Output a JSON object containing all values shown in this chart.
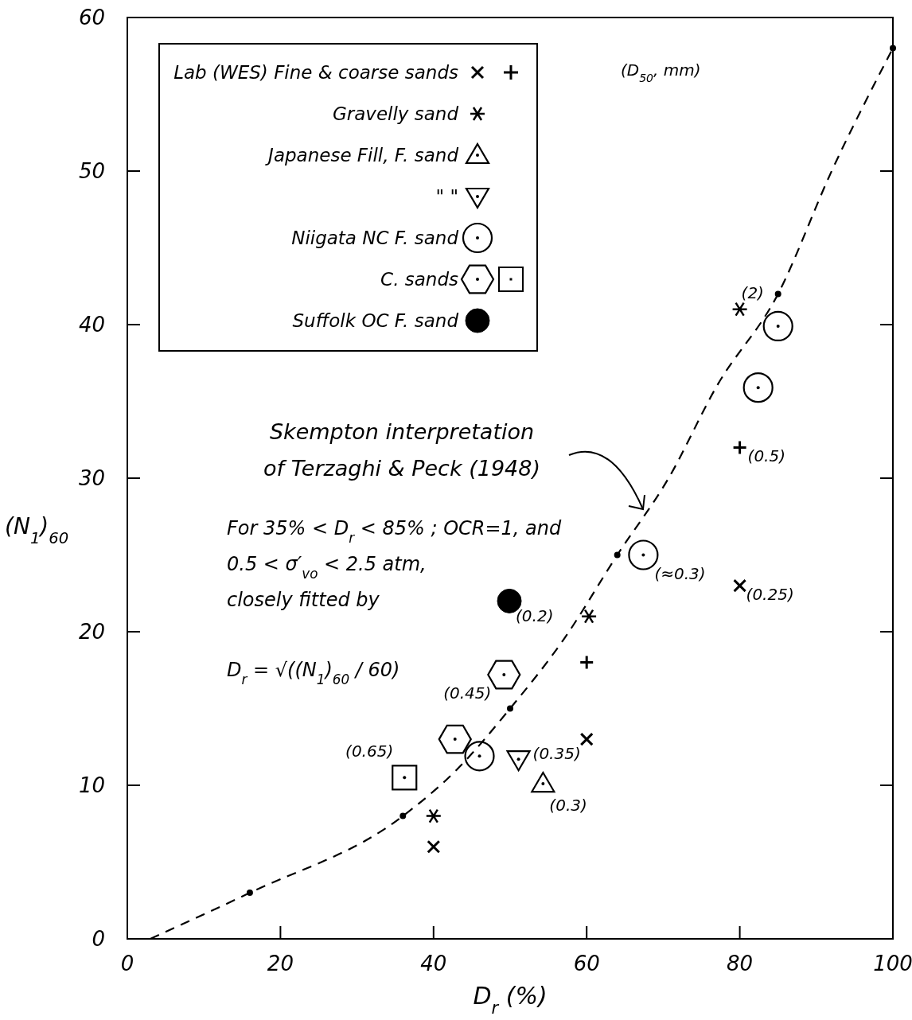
{
  "chart_data": {
    "type": "scatter",
    "xlabel": "D$_{r}$ (%)",
    "ylabel": "(N$_{1}$)$_{60}$",
    "xlim": [
      0,
      100
    ],
    "ylim": [
      0,
      60
    ],
    "xticks": [
      0,
      20,
      40,
      60,
      80,
      100
    ],
    "yticks": [
      0,
      10,
      20,
      30,
      40,
      50,
      60
    ],
    "grid": false,
    "legend": "top left",
    "series": [
      {
        "name": "Lab (WES) Fine & coarse sands",
        "marker": "x",
        "color": "#000000",
        "x": [
          80,
          60,
          40
        ],
        "values": [
          23,
          13,
          6
        ]
      },
      {
        "marker": "plus",
        "color": "#000000",
        "x": [
          80,
          60
        ],
        "values": [
          32,
          18
        ]
      },
      {
        "name": "Gravelly sand",
        "marker": "cross",
        "color": "#000000",
        "x": [
          80,
          60.3,
          40
        ],
        "values": [
          41,
          21,
          8
        ]
      },
      {
        "name": "Japanese Fill, F. sand",
        "marker": "triangle",
        "color": "#000000",
        "x": [
          54.3
        ],
        "values": [
          10.1
        ]
      },
      {
        "name": "\"  \"",
        "marker": "triangle-down",
        "color": "#000000",
        "x": [
          51.1
        ],
        "values": [
          11.7
        ]
      },
      {
        "name": "Niigata NC F. sand",
        "marker": "circle-dot",
        "color": "#000000",
        "x": [
          85,
          82.4,
          67.4,
          46
        ],
        "values": [
          39.9,
          35.9,
          25,
          11.9
        ]
      },
      {
        "name": "C. sands",
        "color": "#000000",
        "x": [
          49.2,
          42.8
        ],
        "values": [
          17.2,
          13
        ]
      },
      {
        "marker": "square",
        "color": "#000000",
        "x": [
          36.2
        ],
        "values": [
          10.5
        ]
      },
      {
        "name": "Suffolk OC F. sand",
        "marker": "circle-filled",
        "color": "#000000",
        "x": [
          49.9
        ],
        "values": [
          22
        ]
      },
      {
        "type": "line",
        "line_style": "dashed",
        "marker": "none",
        "color": "#000000",
        "x": [
          3,
          16,
          36,
          43,
          50,
          57,
          64,
          70.7,
          77,
          85,
          92,
          100
        ],
        "values": [
          0,
          3,
          8,
          11,
          15,
          19.5,
          25,
          30,
          36,
          42,
          50,
          58
        ]
      },
      {
        "marker": "circle",
        "color": "#000000",
        "x": [
          16,
          36,
          50,
          64,
          85,
          100
        ],
        "values": [
          3,
          8,
          15,
          25,
          42,
          58
        ]
      }
    ],
    "annotations": [
      {
        "text": "(2)",
        "x": 80,
        "y": 41
      },
      {
        "text": "(0.5)",
        "x": 80,
        "y": 32
      },
      {
        "text": "(0.25)",
        "x": 80,
        "y": 23
      },
      {
        "text": "(≈0.3)",
        "x": 67.4,
        "y": 25
      },
      {
        "text": "(0.2)",
        "x": 49.9,
        "y": 22
      },
      {
        "text": "(0.45)",
        "x": 49.2,
        "y": 17.2
      },
      {
        "text": "(0.65)",
        "x": 36.2,
        "y": 10.5
      },
      {
        "text": "(0.35)",
        "x": 51.1,
        "y": 11.7
      },
      {
        "text": "(0.3)",
        "x": 54.3,
        "y": 10.1
      },
      "(D$_{50}$, mm)",
      "Skempton interpretation\nof Terzaghi & Peck (1948)",
      "For 35% < D$_{r}$ < 85% ; OCR=1, and\n0.5 < σ′$_{vo}$ < 2.5 atm,\nclosely fitted by",
      "D$_{r}$ = √((N$_{1}$)$_{60}$ / 60)"
    ]
  }
}
